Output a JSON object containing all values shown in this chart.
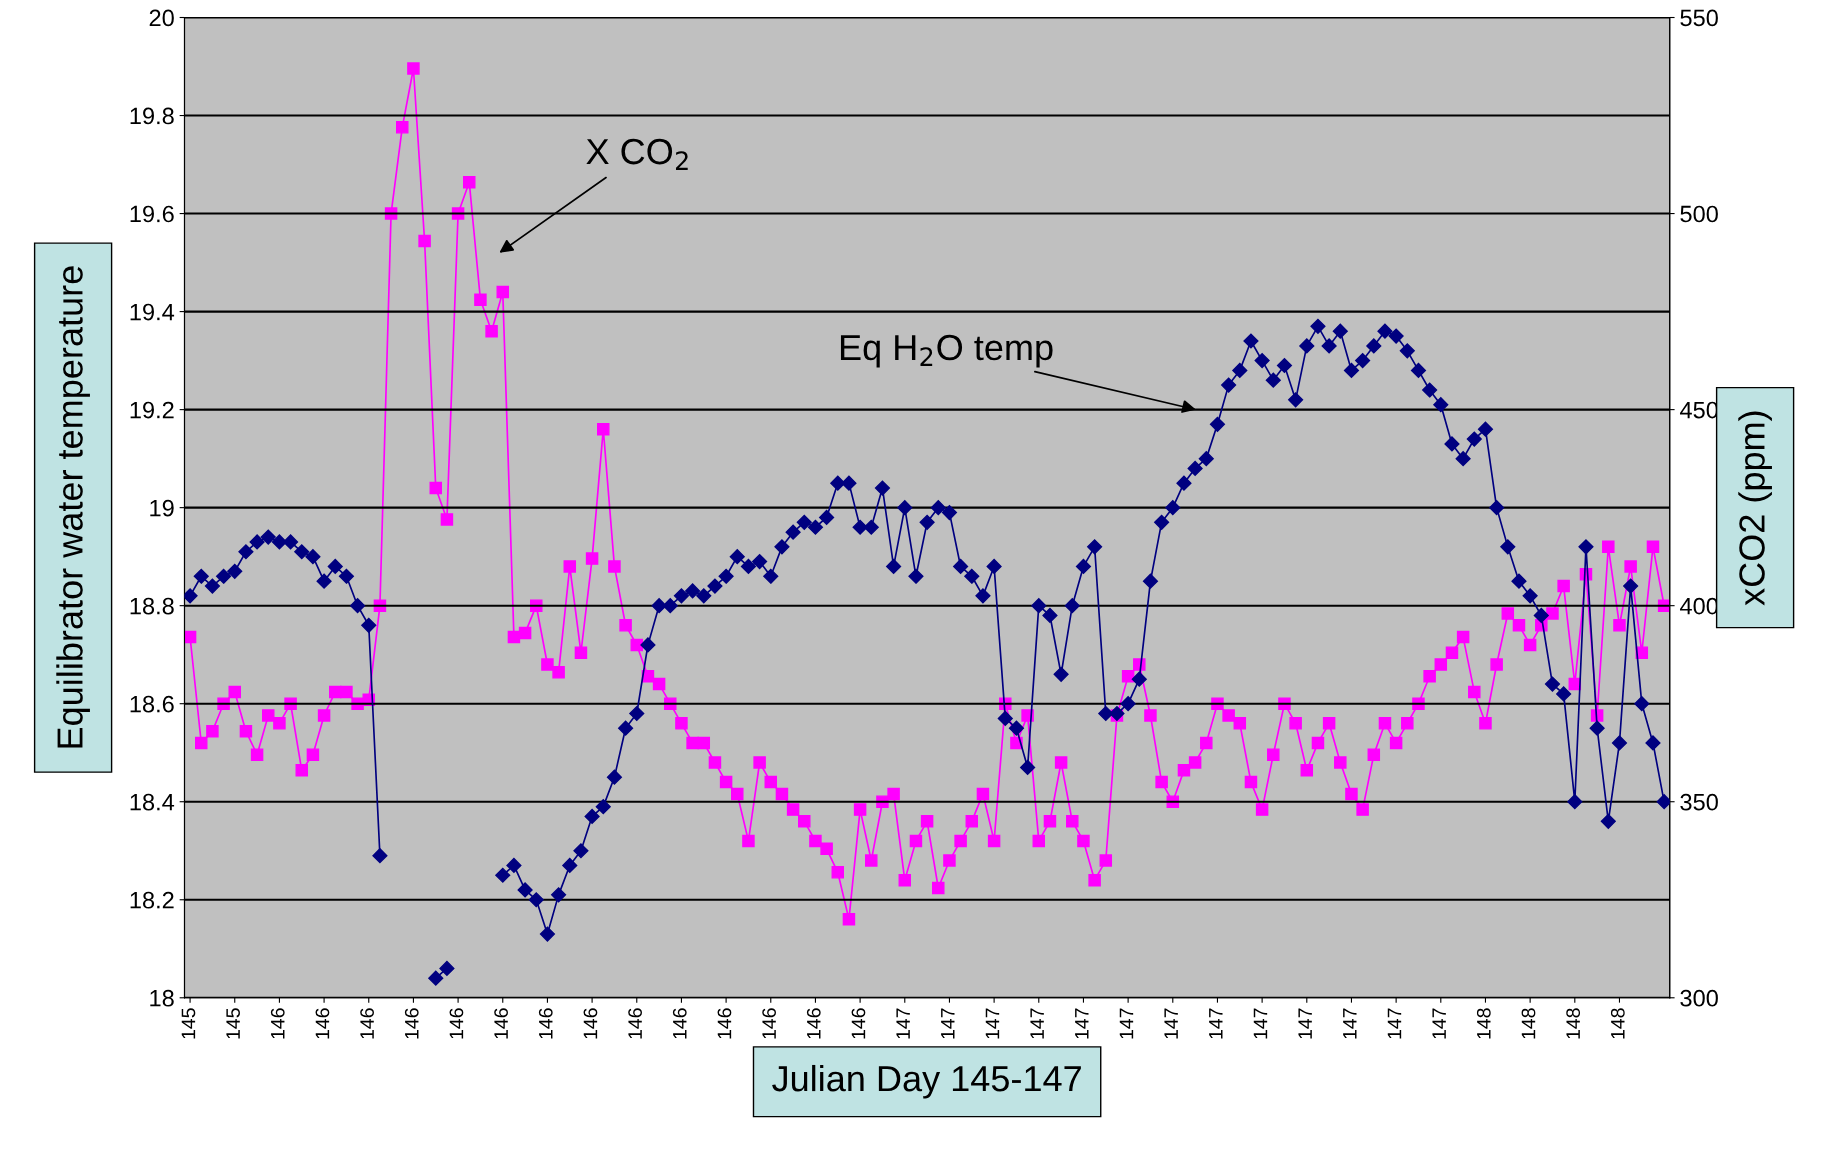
{
  "chart_data": {
    "type": "line",
    "xlabel": "Julian Day 145-147",
    "ylabel": "Equilibrator water temperature",
    "y2label": "xCO2 (ppm)",
    "categories": [
      "145",
      null,
      null,
      null,
      "145",
      null,
      null,
      null,
      "146",
      null,
      null,
      null,
      "146",
      null,
      null,
      null,
      "146",
      null,
      null,
      null,
      "146",
      null,
      null,
      null,
      "146",
      null,
      null,
      null,
      "146",
      null,
      null,
      null,
      "146",
      null,
      null,
      null,
      "146",
      null,
      null,
      null,
      "146",
      null,
      null,
      null,
      "146",
      null,
      null,
      null,
      "146",
      null,
      null,
      null,
      "146",
      null,
      null,
      null,
      "146",
      null,
      null,
      null,
      "146",
      null,
      null,
      null,
      "147",
      null,
      null,
      null,
      "147",
      null,
      null,
      null,
      "147",
      null,
      null,
      null,
      "147",
      null,
      null,
      null,
      "147",
      null,
      null,
      null,
      "147",
      null,
      null,
      null,
      "147",
      null,
      null,
      null,
      "147",
      null,
      null,
      null,
      "147",
      null,
      null,
      null,
      "147",
      null,
      null,
      null,
      "147",
      null,
      null,
      null,
      "147",
      null,
      null,
      null,
      "147",
      null,
      null,
      null,
      "148",
      null,
      null,
      null,
      "148",
      null,
      null,
      null,
      "148",
      null,
      null,
      null,
      "148",
      null,
      null,
      null,
      null
    ],
    "series": [
      {
        "color": "#000080",
        "marker": "diamond",
        "values": [
          18.82,
          18.86,
          18.84,
          18.86,
          18.87,
          18.91,
          18.93,
          18.94,
          18.93,
          18.93,
          18.91,
          18.9,
          18.85,
          18.88,
          18.86,
          18.8,
          18.76,
          18.29,
          null,
          null,
          null,
          null,
          18.04,
          18.06,
          null,
          null,
          null,
          null,
          18.25,
          18.27,
          18.22,
          18.2,
          18.13,
          18.21,
          18.27,
          18.3,
          18.37,
          18.39,
          18.45,
          18.55,
          18.58,
          18.72,
          18.8,
          18.8,
          18.82,
          18.83,
          18.82,
          18.84,
          18.86,
          18.9,
          18.88,
          18.89,
          18.86,
          18.92,
          18.95,
          18.97,
          18.96,
          18.98,
          19.05,
          19.05,
          18.96,
          18.96,
          19.04,
          18.88,
          19.0,
          18.86,
          18.97,
          19.0,
          18.99,
          18.88,
          18.86,
          18.82,
          18.88,
          18.57,
          18.55,
          18.47,
          18.8,
          18.78,
          18.66,
          18.8,
          18.88,
          18.92,
          18.58,
          18.58,
          18.6,
          18.65,
          18.85,
          18.97,
          19.0,
          19.05,
          19.08,
          19.1,
          19.17,
          19.25,
          19.28,
          19.34,
          19.3,
          19.26,
          19.29,
          19.22,
          19.33,
          19.37,
          19.33,
          19.36,
          19.28,
          19.3,
          19.33,
          19.36,
          19.35,
          19.32,
          19.28,
          19.24,
          19.21,
          19.13,
          19.1,
          19.14,
          19.16,
          19.0,
          18.92,
          18.85,
          18.82,
          18.78,
          18.64,
          18.62,
          18.4,
          18.92,
          18.55,
          18.36,
          18.52,
          18.84,
          18.6,
          18.52,
          18.4
        ]
      },
      {
        "color": "#ff00ff",
        "marker": "square",
        "axis": "y2",
        "values": [
          392,
          365,
          368,
          375,
          378,
          368,
          362,
          372,
          370,
          375,
          358,
          362,
          372,
          378,
          378,
          375,
          376,
          400,
          500,
          522,
          537,
          493,
          430,
          422,
          500,
          508,
          478,
          470,
          480,
          392,
          393,
          400,
          385,
          383,
          410,
          388,
          412,
          445,
          410,
          395,
          390,
          382,
          380,
          375,
          370,
          365,
          365,
          360,
          355,
          352,
          340,
          360,
          355,
          352,
          348,
          345,
          340,
          338,
          332,
          320,
          348,
          335,
          350,
          352,
          330,
          340,
          345,
          328,
          335,
          340,
          345,
          352,
          340,
          375,
          365,
          372,
          340,
          345,
          360,
          345,
          340,
          330,
          335,
          372,
          382,
          385,
          372,
          355,
          350,
          358,
          360,
          365,
          375,
          372,
          370,
          355,
          348,
          362,
          375,
          370,
          358,
          365,
          370,
          360,
          352,
          348,
          362,
          370,
          365,
          370,
          375,
          382,
          385,
          388,
          392,
          378,
          370,
          385,
          398,
          395,
          390,
          395,
          398,
          405,
          380,
          408,
          372,
          415,
          395,
          410,
          388,
          415,
          400
        ]
      }
    ],
    "ylim": [
      18,
      20
    ],
    "yticks": [
      18,
      18.2,
      18.4,
      18.6,
      18.8,
      19,
      19.2,
      19.4,
      19.6,
      19.8,
      20
    ],
    "y2lim": [
      300,
      550
    ],
    "y2ticks": [
      300,
      350,
      400,
      450,
      500,
      550
    ],
    "grid": "y",
    "legend": false,
    "line_style": "solid",
    "annotations": [
      "X CO$_{2}$",
      "Eq H$_{2}$O temp"
    ]
  }
}
